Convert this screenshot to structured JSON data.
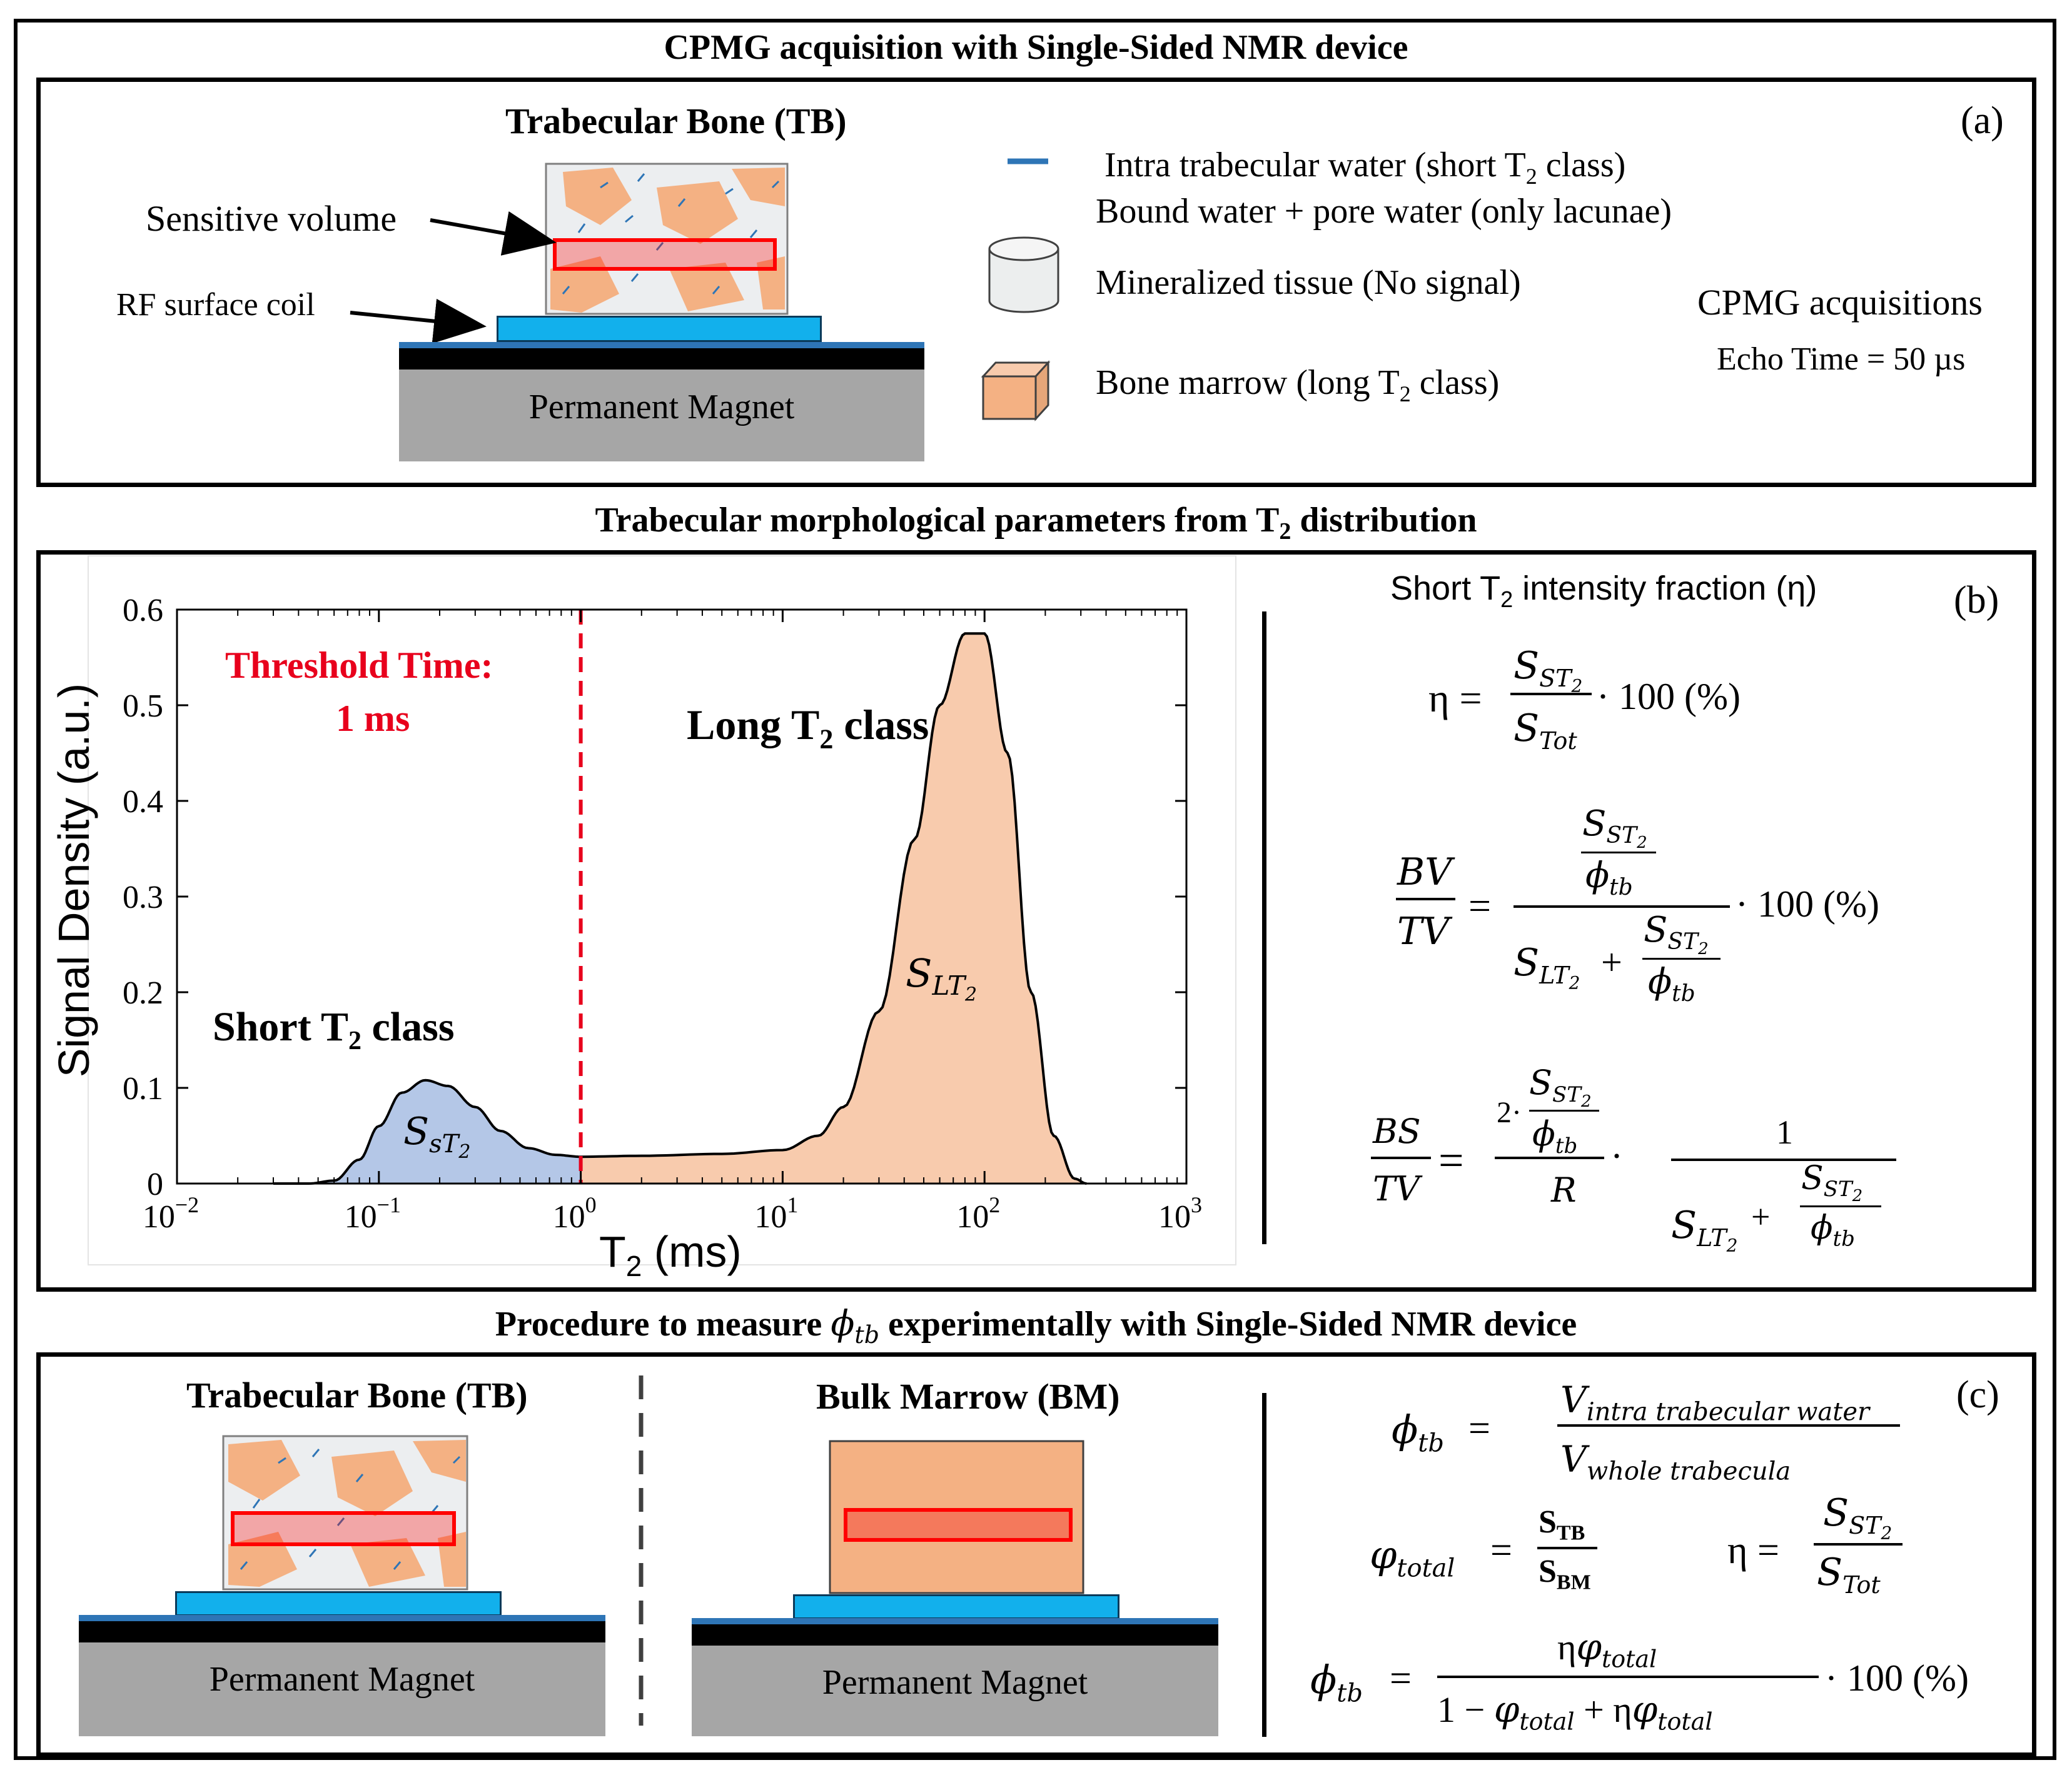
{
  "panel_a": {
    "title": "CPMG acquisition with Single-Sided NMR device",
    "letter": "(a)",
    "sample_title": "Trabecular Bone (TB)",
    "sensitive_volume": "Sensitive volume",
    "rf_coil": "RF surface coil",
    "magnet": "Permanent Magnet",
    "legend_water_1_pre": "Intra trabecular water (short T",
    "legend_water_1_sub": "2",
    "legend_water_1_post": " class)",
    "legend_water_2": "Bound water + pore water (only lacunae)",
    "legend_mineral": "Mineralized tissue (No signal)",
    "legend_marrow_pre": "Bone marrow (long T",
    "legend_marrow_sub": "2",
    "legend_marrow_post": " class)",
    "cpmg_title": "CPMG acquisitions",
    "cpmg_echo": "Echo Time = 50 µs"
  },
  "panel_b": {
    "title_pre": "Trabecular morphological parameters from T",
    "title_sub": "2",
    "title_post": " distribution",
    "letter": "(b)",
    "threshold_line1": "Threshold Time:",
    "threshold_line2": "1 ms",
    "long_class_pre": "Long T",
    "long_class_sub": "2",
    "long_class_post": " class",
    "short_class_pre": "Short T",
    "short_class_sub": "2",
    "short_class_post": " class",
    "area_short": "S",
    "area_short_sub": "sT",
    "area_short_sub2": "2",
    "area_long": "S",
    "area_long_sub": "LT",
    "area_long_sub2": "2",
    "eta_title_pre": "Short T",
    "eta_title_sub": "2",
    "eta_title_post": " intensity fraction (η)",
    "eq_eta_lhs": "η =",
    "eq_factor": "· 100 (%)",
    "eq_bv_num": "BV",
    "eq_bv_den": "TV",
    "eq_bs_num": "BS",
    "eq_bs_den": "TV",
    "eq_r": "R",
    "eq_two": "2·",
    "eq_one": "1",
    "s_st2": "S",
    "s_st2_sub": "ST",
    "s_tot": "S",
    "s_tot_sub": "Tot",
    "s_lt2_sub": "LT",
    "phi_tb": "ϕ",
    "phi_tb_sub": "tb",
    "sub2": "2"
  },
  "chart_data": {
    "type": "area",
    "title": "",
    "xlabel": "T2 (ms)",
    "ylabel": "Signal Density (a.u.)",
    "xscale": "log",
    "xlim": [
      0.01,
      1000
    ],
    "ylim": [
      0,
      0.6
    ],
    "xticks": [
      0.01,
      0.1,
      1,
      10,
      100,
      1000
    ],
    "xtick_base": "10",
    "xtick_exponents": [
      "−2",
      "−1",
      "0",
      "1",
      "2",
      "3"
    ],
    "yticks": [
      "0",
      "0.1",
      "0.2",
      "0.3",
      "0.4",
      "0.5",
      "0.6"
    ],
    "ytick_values": [
      0,
      0.1,
      0.2,
      0.3,
      0.4,
      0.5,
      0.6
    ],
    "threshold_ms": 1,
    "series": [
      {
        "name": "T2 distribution",
        "x": [
          0.03,
          0.045,
          0.06,
          0.08,
          0.1,
          0.13,
          0.17,
          0.22,
          0.3,
          0.4,
          0.55,
          0.75,
          1,
          2,
          5,
          10,
          15,
          20,
          30,
          45,
          60,
          80,
          100,
          130,
          170,
          220,
          280,
          320
        ],
        "y": [
          0,
          0,
          0.003,
          0.025,
          0.06,
          0.095,
          0.108,
          0.102,
          0.08,
          0.055,
          0.037,
          0.03,
          0.028,
          0.029,
          0.031,
          0.035,
          0.05,
          0.08,
          0.18,
          0.36,
          0.5,
          0.575,
          0.575,
          0.45,
          0.2,
          0.05,
          0.005,
          0
        ]
      }
    ],
    "fill_short_color": "#b4c7e7",
    "fill_long_color": "#f8cbad",
    "threshold_color": "#e8001c"
  },
  "panel_c": {
    "title_pre": "Procedure to measure ",
    "title_phi": "ϕ",
    "title_phi_sub": "tb",
    "title_post": " experimentally with Single-Sided NMR device",
    "letter": "(c)",
    "tb_title": "Trabecular Bone (TB)",
    "bm_title": "Bulk Marrow (BM)",
    "magnet": "Permanent Magnet",
    "phi_tb": "ϕ",
    "phi_tb_sub": "tb",
    "v_intra": "V",
    "v_intra_sub": "intra trabecular water",
    "v_whole": "V",
    "v_whole_sub": "whole trabecula",
    "varphi": "φ",
    "varphi_sub": "total",
    "s_tb": "S",
    "s_tb_sub": "TB",
    "s_bm": "S",
    "s_bm_sub": "BM",
    "eta": "η",
    "s_st2": "S",
    "s_st2_sub": "ST",
    "s_tot": "S",
    "s_tot_sub": "Tot",
    "sub2": "2",
    "eq_equals": "=",
    "eq_one_minus": "1 −",
    "eq_plus": "+",
    "eq_factor": "· 100 (%)"
  },
  "colors": {
    "marrow": "#f4b183",
    "coil": "#12b0ec",
    "magnet": "#a6a6a6",
    "sensitive": "#ff0000",
    "water": "#2e75b6"
  }
}
